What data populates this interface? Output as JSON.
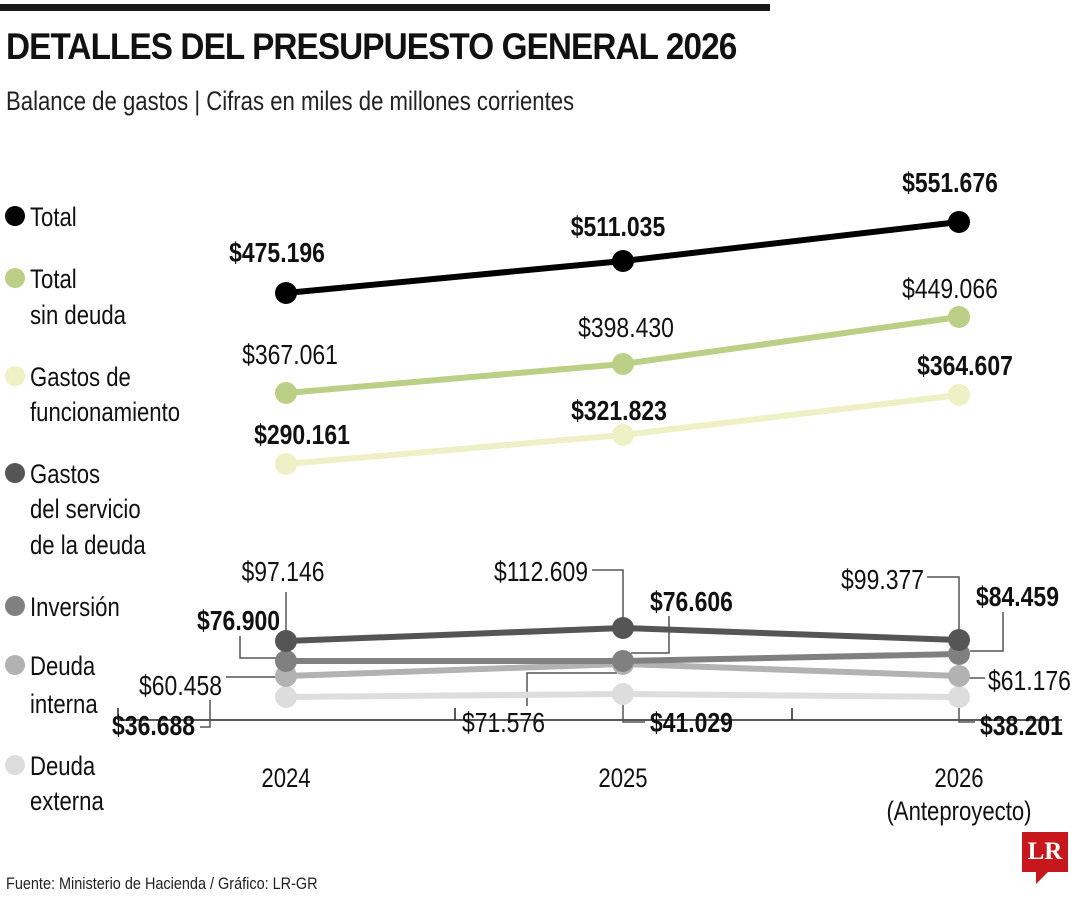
{
  "title": "DETALLES DEL PRESUPUESTO GENERAL 2026",
  "subtitle": "Balance de gastos | Cifras en miles de millones corrientes",
  "source": "Fuente: Ministerio de Hacienda / Gráfico: LR-GR",
  "logo_text": "LR",
  "colors": {
    "brand": "#c8161d"
  },
  "chart_data": {
    "type": "line",
    "title": "DETALLES DEL PRESUPUESTO GENERAL 2026",
    "categories": [
      "2024",
      "2025",
      "2026"
    ],
    "category_notes": [
      "",
      "",
      "(Anteproyecto)"
    ],
    "legend_placement": "left",
    "grid": false,
    "series": [
      {
        "name": "Total",
        "color": "#000000",
        "values": [
          475196,
          511035,
          551676
        ],
        "labels": [
          "$475.196",
          "$511.035",
          "$551.676"
        ]
      },
      {
        "name": "Total sin deuda",
        "legend_lines": [
          "Total",
          "sin deuda"
        ],
        "color": "#bccf86",
        "values": [
          367061,
          398430,
          449066
        ],
        "labels": [
          "$367.061",
          "$398.430",
          "$449.066"
        ]
      },
      {
        "name": "Gastos de funcionamiento",
        "legend_lines": [
          "Gastos de",
          "funcionamiento"
        ],
        "color": "#eef0c6",
        "values": [
          290161,
          321823,
          364607
        ],
        "labels": [
          "$290.161",
          "$321.823",
          "$364.607"
        ]
      },
      {
        "name": "Gastos del servicio de la deuda",
        "legend_lines": [
          "Gastos",
          "del servicio",
          "de la deuda"
        ],
        "color": "#555555",
        "values": [
          97146,
          112609,
          99377
        ],
        "labels": [
          "$97.146",
          "$112.609",
          "$99.377"
        ]
      },
      {
        "name": "Inversión",
        "color": "#808080",
        "values": [
          76900,
          76606,
          84459
        ],
        "labels": [
          "$76.900",
          "$76.606",
          "$84.459"
        ]
      },
      {
        "name": "Deuda interna",
        "legend_lines": [
          "Deuda",
          "interna"
        ],
        "color": "#b2b2b2",
        "values": [
          60458,
          71576,
          61176
        ],
        "labels": [
          "$60.458",
          "$71.576",
          "$61.176"
        ]
      },
      {
        "name": "Deuda externa",
        "legend_lines": [
          "Deuda",
          "externa"
        ],
        "color": "#dddddd",
        "values": [
          36688,
          41029,
          38201
        ],
        "labels": [
          "$36.688",
          "$41.029",
          "$38.201"
        ]
      }
    ]
  }
}
